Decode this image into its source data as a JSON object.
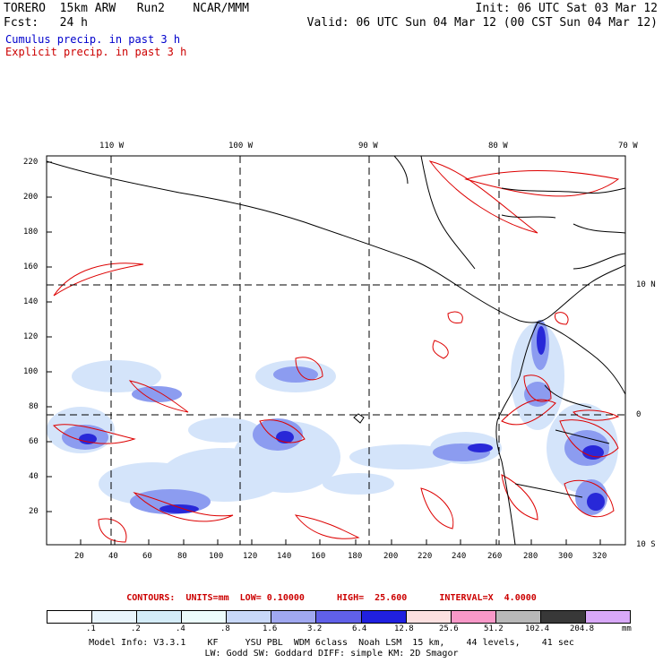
{
  "header": {
    "model": "TORERO  15km ARW   Run2    NCAR/MMM",
    "init": "Init: 06 UTC Sat 03 Mar 12",
    "fcst": "Fcst:   24 h",
    "valid": "Valid: 06 UTC Sun 04 Mar 12 (00 CST Sun 04 Mar 12)"
  },
  "legend": {
    "cumulus": "Cumulus precip. in past 3 h",
    "explicit": "Explicit precip. in past 3 h",
    "cumulus_color": "#0000cc",
    "explicit_color": "#cc0000"
  },
  "top_labels": [
    "110 W",
    "100 W",
    "90 W",
    "80 W",
    "70 W"
  ],
  "right_labels": [
    "10 N",
    "0",
    "10 S"
  ],
  "y_ticks": [
    "220",
    "200",
    "180",
    "160",
    "140",
    "120",
    "100",
    "80",
    "60",
    "40",
    "20"
  ],
  "x_ticks": [
    "20",
    "40",
    "60",
    "80",
    "100",
    "120",
    "140",
    "160",
    "180",
    "200",
    "220",
    "240",
    "260",
    "280",
    "300",
    "320"
  ],
  "contours_line": "CONTOURS:  UNITS=mm  LOW= 0.10000      HIGH=  25.600      INTERVAL=X  4.0000",
  "colorbar": {
    "labels": [
      ".1",
      ".2",
      ".4",
      ".8",
      "1.6",
      "3.2",
      "6.4",
      "12.8",
      "25.6",
      "51.2",
      "102.4",
      "204.8"
    ],
    "unit": "mm",
    "colors": [
      "#ffffff",
      "#e8f4fc",
      "#d4ecf8",
      "#ecfcfc",
      "#c8d8f8",
      "#a0a8f0",
      "#6060e8",
      "#2020e0",
      "#fce0e0",
      "#f898c8",
      "#b8b8b8",
      "#383838",
      "#d8a8f8"
    ]
  },
  "footer": {
    "line1": "Model Info: V3.3.1    KF     YSU PBL  WDM 6class  Noah LSM  15 km,    44 levels,    41 sec",
    "line2": "LW: Godd SW: Goddard DIFF: simple KM: 2D Smagor"
  }
}
